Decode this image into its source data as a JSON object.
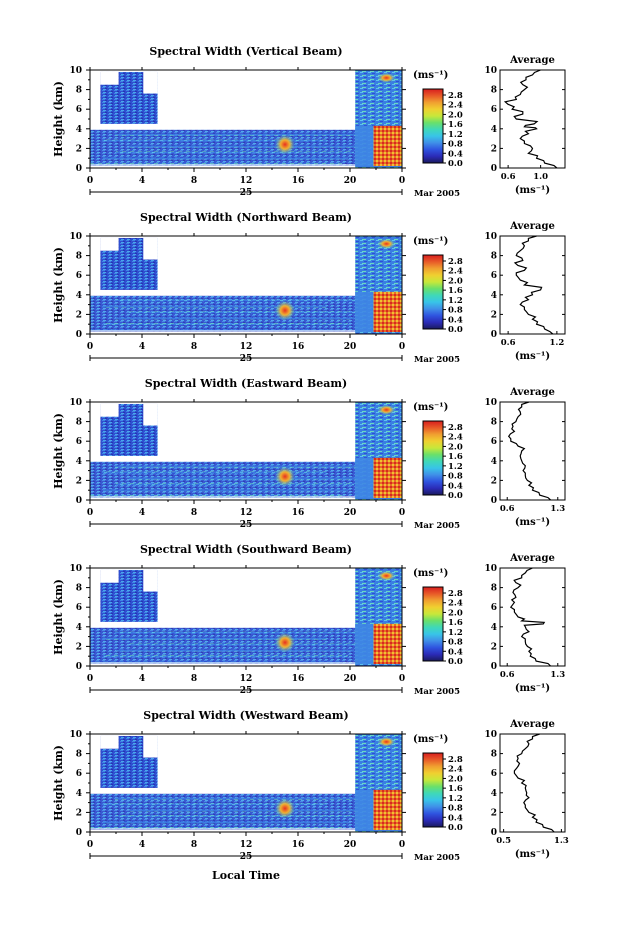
{
  "colors": {
    "colorbar_stops": [
      "#1a1a5e",
      "#2b2bb8",
      "#2f54e0",
      "#3f8fe8",
      "#38c4e8",
      "#3fd8b8",
      "#6ae06a",
      "#c8e83a",
      "#f0d030",
      "#f0a030",
      "#e85a28",
      "#d81e1e"
    ],
    "field_dark": "#2b3bc4",
    "field_mid": "#3a78e0",
    "field_light": "#5bb8f0",
    "hot": "#e8502a",
    "warm": "#f0c030"
  },
  "shared": {
    "y_axis_label": "Height (km)",
    "unit_label": "(ms⁻¹)",
    "date_label": "Mar 2005",
    "day_label": "25",
    "x_axis_label": "Local Time",
    "avg_title": "Average",
    "avg_unit": "(ms⁻¹)"
  },
  "chart_data": [
    {
      "type": "heatmap",
      "title": "Spectral Width (Vertical Beam)",
      "x_ticks": [
        "0",
        "4",
        "8",
        "12",
        "16",
        "20",
        "0"
      ],
      "y_ticks": [
        "0",
        "2",
        "4",
        "6",
        "8",
        "10"
      ],
      "ylim": [
        0,
        10
      ],
      "xlim": [
        0,
        24
      ],
      "colorbar_ticks": [
        "0.0",
        "0.4",
        "0.8",
        "1.2",
        "1.6",
        "2.0",
        "2.4",
        "2.8"
      ],
      "colorbar_range": [
        0,
        2.8
      ],
      "average_profile": {
        "x_ticks": [
          "0.6",
          "1.0"
        ],
        "xlim": [
          0.5,
          1.3
        ],
        "height": [
          0,
          0.5,
          1,
          1.5,
          2,
          2.5,
          3,
          3.5,
          4,
          4.2,
          4.5,
          5,
          5.5,
          6,
          6.5,
          7,
          7.5,
          8,
          8.5,
          9,
          9.5,
          10
        ],
        "value": [
          1.2,
          1.05,
          0.95,
          0.85,
          0.9,
          0.8,
          0.75,
          0.85,
          0.95,
          0.8,
          0.92,
          0.7,
          0.78,
          0.65,
          0.6,
          0.7,
          0.75,
          0.8,
          0.78,
          0.82,
          0.9,
          1.0
        ]
      }
    },
    {
      "type": "heatmap",
      "title": "Spectral Width (Northward Beam)",
      "x_ticks": [
        "0",
        "4",
        "8",
        "12",
        "16",
        "20",
        "0"
      ],
      "y_ticks": [
        "0",
        "2",
        "4",
        "6",
        "8",
        "10"
      ],
      "ylim": [
        0,
        10
      ],
      "xlim": [
        0,
        24
      ],
      "colorbar_ticks": [
        "0.0",
        "0.4",
        "0.8",
        "1.2",
        "1.6",
        "2.0",
        "2.4",
        "2.8"
      ],
      "colorbar_range": [
        0,
        2.8
      ],
      "average_profile": {
        "x_ticks": [
          "0.6",
          "1.2"
        ],
        "xlim": [
          0.5,
          1.3
        ],
        "height": [
          0,
          0.5,
          1,
          1.5,
          2,
          2.5,
          3,
          3.5,
          4,
          4.5,
          5,
          5.5,
          6,
          6.5,
          7,
          7.5,
          8,
          8.5,
          9,
          9.5,
          10
        ],
        "value": [
          1.15,
          1.05,
          0.95,
          0.9,
          0.85,
          0.8,
          0.75,
          0.85,
          0.9,
          1.0,
          0.8,
          0.75,
          0.7,
          0.8,
          0.72,
          0.78,
          0.7,
          0.75,
          0.8,
          0.85,
          0.95
        ]
      }
    },
    {
      "type": "heatmap",
      "title": "Spectral Width (Eastward Beam)",
      "x_ticks": [
        "0",
        "4",
        "8",
        "12",
        "16",
        "20",
        "0"
      ],
      "y_ticks": [
        "0",
        "2",
        "4",
        "6",
        "8",
        "10"
      ],
      "ylim": [
        0,
        10
      ],
      "xlim": [
        0,
        24
      ],
      "colorbar_ticks": [
        "0.0",
        "0.4",
        "0.8",
        "1.2",
        "1.6",
        "2.0",
        "2.4",
        "2.8"
      ],
      "colorbar_range": [
        0,
        2.8
      ],
      "average_profile": {
        "x_ticks": [
          "0.6",
          "1.3"
        ],
        "xlim": [
          0.5,
          1.4
        ],
        "height": [
          0,
          0.5,
          1,
          1.5,
          2,
          2.5,
          3,
          3.5,
          4,
          4.5,
          5,
          5.5,
          6,
          6.5,
          7,
          7.5,
          8,
          8.5,
          9,
          9.5,
          10
        ],
        "value": [
          1.2,
          1.05,
          0.95,
          0.9,
          0.88,
          0.85,
          0.82,
          0.85,
          0.8,
          0.78,
          0.8,
          0.75,
          0.65,
          0.62,
          0.7,
          0.68,
          0.72,
          0.75,
          0.78,
          0.8,
          0.9
        ]
      }
    },
    {
      "type": "heatmap",
      "title": "Spectral Width (Southward Beam)",
      "x_ticks": [
        "0",
        "4",
        "8",
        "12",
        "16",
        "20",
        "0"
      ],
      "y_ticks": [
        "0",
        "2",
        "4",
        "6",
        "8",
        "10"
      ],
      "ylim": [
        0,
        10
      ],
      "xlim": [
        0,
        24
      ],
      "colorbar_ticks": [
        "0.0",
        "0.4",
        "0.8",
        "1.2",
        "1.6",
        "2.0",
        "2.4",
        "2.8"
      ],
      "colorbar_range": [
        0,
        2.8
      ],
      "average_profile": {
        "x_ticks": [
          "0.6",
          "1.3"
        ],
        "xlim": [
          0.5,
          1.4
        ],
        "height": [
          0,
          0.5,
          1,
          1.5,
          2,
          2.5,
          3,
          3.5,
          4,
          4.3,
          4.6,
          5,
          5.5,
          6,
          6.5,
          7,
          7.5,
          8,
          8.5,
          9,
          9.5,
          10
        ],
        "value": [
          1.2,
          1.0,
          0.92,
          0.9,
          0.88,
          0.85,
          0.8,
          0.9,
          0.85,
          1.1,
          0.8,
          0.75,
          0.7,
          0.65,
          0.7,
          0.72,
          0.68,
          0.75,
          0.72,
          0.8,
          0.85,
          0.95
        ]
      }
    },
    {
      "type": "heatmap",
      "title": "Spectral Width (Westward Beam)",
      "x_ticks": [
        "0",
        "4",
        "8",
        "12",
        "16",
        "20",
        "0"
      ],
      "y_ticks": [
        "0",
        "2",
        "4",
        "6",
        "8",
        "10"
      ],
      "ylim": [
        0,
        10
      ],
      "xlim": [
        0,
        24
      ],
      "colorbar_ticks": [
        "0.0",
        "0.4",
        "0.8",
        "1.2",
        "1.6",
        "2.0",
        "2.4",
        "2.8"
      ],
      "colorbar_range": [
        0,
        2.8
      ],
      "average_profile": {
        "x_ticks": [
          "0.5",
          "1.3"
        ],
        "xlim": [
          0.45,
          1.35
        ],
        "height": [
          0,
          0.5,
          1,
          1.5,
          2,
          2.5,
          3,
          3.5,
          4,
          4.5,
          5,
          5.5,
          6,
          6.5,
          7,
          7.5,
          8,
          8.5,
          9,
          9.5,
          10
        ],
        "value": [
          1.2,
          1.05,
          0.95,
          0.9,
          0.85,
          0.8,
          0.78,
          0.85,
          0.82,
          0.8,
          0.75,
          0.7,
          0.65,
          0.68,
          0.72,
          0.7,
          0.75,
          0.8,
          0.85,
          0.9,
          1.0
        ]
      }
    }
  ]
}
